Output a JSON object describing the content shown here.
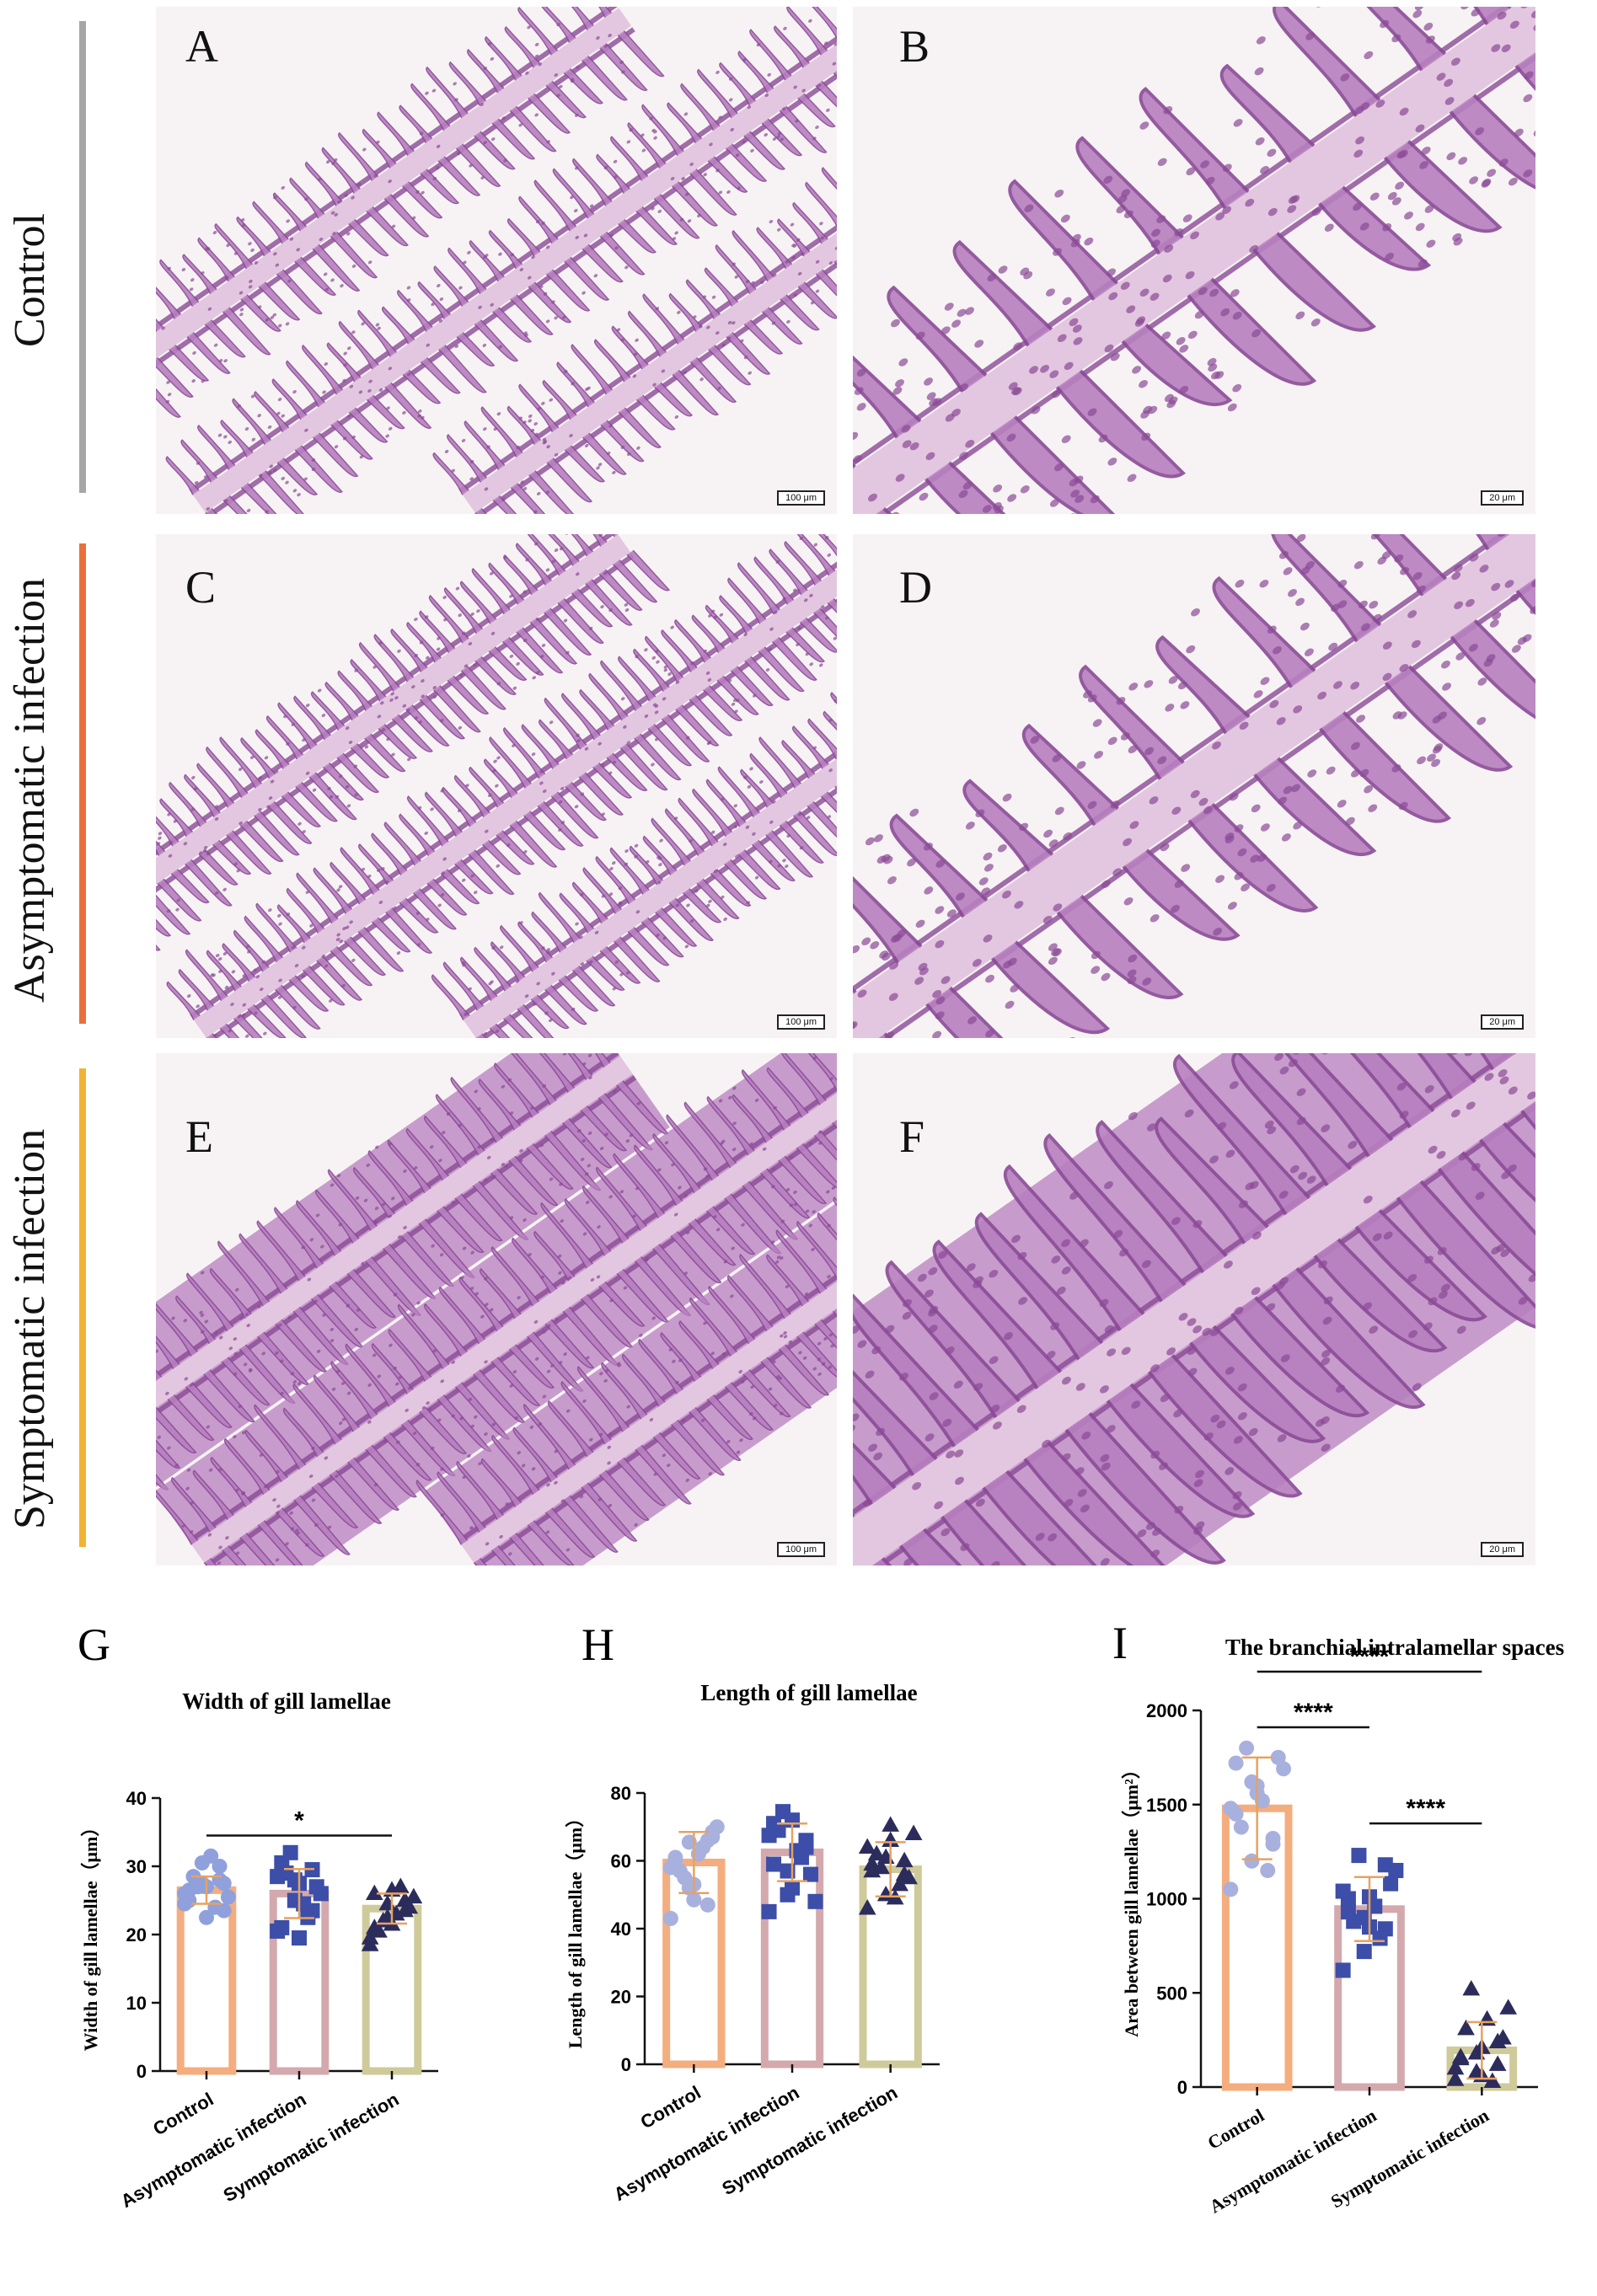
{
  "rows": [
    {
      "label": "Control",
      "color": "#a6a6a6"
    },
    {
      "label": "Asymptomatic infection",
      "color": "#e8703a"
    },
    {
      "label": "Symptomatic infection",
      "color": "#f2b233"
    }
  ],
  "panels": [
    {
      "letter": "A",
      "scale": "100 μm"
    },
    {
      "letter": "B",
      "scale": "20 μm"
    },
    {
      "letter": "C",
      "scale": "100 μm"
    },
    {
      "letter": "D",
      "scale": "20 μm"
    },
    {
      "letter": "E",
      "scale": "100 μm"
    },
    {
      "letter": "F",
      "scale": "20 μm"
    }
  ],
  "tissue_colors": {
    "stain_dark": "#8a4a96",
    "stain_mid": "#b77fbf",
    "stain_light": "#e3c7e0",
    "background": "#f7f3f4"
  },
  "chart_data": [
    {
      "letter": "G",
      "type": "bar",
      "title": "Width of gill lamellae",
      "ylabel": "Width of gill lamellae（μm）",
      "categories": [
        "Control",
        "Asymptomatic infection",
        "Symptomatic infection"
      ],
      "values": [
        26.5,
        26.0,
        23.8
      ],
      "sd": [
        2.0,
        3.6,
        2.2
      ],
      "ylim": [
        0,
        40
      ],
      "yticks": [
        0,
        10,
        20,
        30,
        40
      ],
      "bar_colors": [
        "#f4ad7e",
        "#d3a9ad",
        "#cfca9a"
      ],
      "point_colors": [
        "#8fa0dc",
        "#3c4ea8",
        "#2c2c5c"
      ],
      "point_shapes": [
        "circle",
        "square",
        "triangle"
      ],
      "points": [
        [
          24.5,
          27.5,
          30.0,
          26.5,
          27.0,
          23.5,
          28.5,
          31.5,
          25.5,
          27.0,
          24.0,
          26.0,
          30.5,
          28.0,
          25.0,
          22.5,
          27.5
        ],
        [
          20.5,
          28.0,
          23.5,
          30.5,
          19.5,
          27.0,
          29.0,
          24.5,
          26.0,
          32.0,
          22.5,
          28.5,
          25.0,
          29.5,
          21.0,
          27.5
        ],
        [
          18.5,
          22.5,
          25.0,
          21.0,
          26.5,
          24.0,
          20.5,
          23.0,
          25.5,
          22.0,
          27.0,
          19.5,
          24.5,
          23.5,
          26.0,
          21.5
        ]
      ],
      "significance": [
        {
          "from": 0,
          "to": 2,
          "label": "*"
        }
      ]
    },
    {
      "letter": "H",
      "type": "bar",
      "title": "Length of gill lamellae",
      "ylabel": "Length of gill lamellae（μm）",
      "categories": [
        "Control",
        "Asymptomatic infection",
        "Symptomatic infection"
      ],
      "values": [
        59.5,
        62.5,
        57.5
      ],
      "sd": [
        9.0,
        8.5,
        8.0
      ],
      "ylim": [
        0,
        80
      ],
      "yticks": [
        0,
        20,
        40,
        60,
        80
      ],
      "bar_colors": [
        "#f4ad7e",
        "#d3a9ad",
        "#cfca9a"
      ],
      "point_colors": [
        "#a8b0de",
        "#3c4ea8",
        "#2c2c5c"
      ],
      "point_shapes": [
        "circle",
        "square",
        "triangle"
      ],
      "points": [
        [
          43.0,
          52.0,
          66.0,
          60.0,
          48.5,
          68.5,
          57.0,
          62.0,
          70.0,
          55.0,
          64.0,
          58.0,
          65.5,
          47.0,
          61.0,
          53.0,
          67.0
        ],
        [
          45.0,
          50.0,
          66.0,
          59.0,
          72.0,
          56.0,
          69.0,
          63.0,
          48.0,
          74.5,
          61.0,
          67.5,
          57.0,
          64.0,
          71.0,
          52.0
        ],
        [
          46.0,
          50.0,
          60.0,
          57.0,
          66.0,
          55.0,
          62.0,
          49.0,
          68.0,
          58.0,
          53.0,
          64.0,
          61.0,
          56.0,
          59.0,
          70.5
        ]
      ],
      "significance": []
    },
    {
      "letter": "I",
      "type": "bar",
      "title": "The branchial intralamellar spaces",
      "ylabel": "Area between gill lamellae（μm²）",
      "categories": [
        "Control",
        "Asymptomatic infection",
        "Symptomatic infection"
      ],
      "values": [
        1480,
        945,
        195
      ],
      "sd": [
        270,
        170,
        150
      ],
      "ylim": [
        0,
        2000
      ],
      "yticks": [
        0,
        500,
        1000,
        1500,
        2000
      ],
      "bar_colors": [
        "#f4ad7e",
        "#d3a9ad",
        "#cfca9a"
      ],
      "point_colors": [
        "#a8b0de",
        "#3c4ea8",
        "#2c2c5c"
      ],
      "point_shapes": [
        "circle",
        "square",
        "triangle"
      ],
      "points": [
        [
          1050,
          1200,
          1320,
          1450,
          1600,
          1750,
          1380,
          1520,
          1690,
          1800,
          1150,
          1480,
          1620,
          1290,
          1720,
          1560
        ],
        [
          620,
          720,
          840,
          930,
          1010,
          1080,
          880,
          960,
          1150,
          1230,
          790,
          1040,
          900,
          1180,
          1000,
          850
        ],
        [
          40,
          80,
          120,
          160,
          210,
          260,
          310,
          360,
          420,
          520,
          30,
          100,
          180,
          240,
          150,
          60
        ]
      ],
      "significance": [
        {
          "from": 0,
          "to": 1,
          "label": "****"
        },
        {
          "from": 1,
          "to": 2,
          "label": "****"
        },
        {
          "from": 0,
          "to": 2,
          "label": "****"
        }
      ]
    }
  ]
}
